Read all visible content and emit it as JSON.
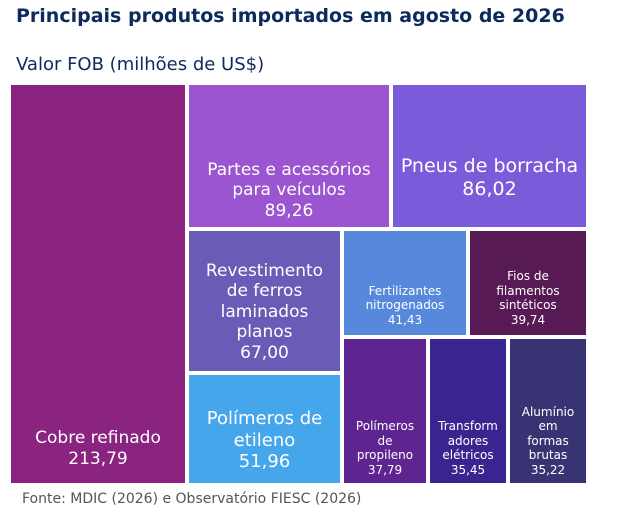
{
  "title": "Principais produtos importados em agosto de 2026",
  "subtitle": "Valor FOB (milhões de US$)",
  "source": "Fonte: MDIC (2026) e Observatório FIESC (2026)",
  "chart_data": {
    "type": "treemap",
    "title": "Principais produtos importados em agosto de 2026",
    "subtitle": "Valor FOB (milhões de US$)",
    "items": [
      {
        "label": "Cobre refinado",
        "value": 213.79,
        "display": "213,79",
        "color": "#8b2381"
      },
      {
        "label": "Partes e acessórios para veículos",
        "value": 89.26,
        "display": "89,26",
        "color": "#9b55d0"
      },
      {
        "label": "Pneus de borracha",
        "value": 86.02,
        "display": "86,02",
        "color": "#7a5bd9"
      },
      {
        "label": "Revestimento de ferros laminados planos",
        "value": 67.0,
        "display": "67,00",
        "color": "#6a5bb6"
      },
      {
        "label": "Polímeros de etileno",
        "value": 51.96,
        "display": "51,96",
        "color": "#46a6ec"
      },
      {
        "label": "Fertilizantes nitrogenados",
        "value": 41.43,
        "display": "41,43",
        "color": "#5688dc"
      },
      {
        "label": "Fios de filamentos sintéticos",
        "value": 39.74,
        "display": "39,74",
        "color": "#581a55"
      },
      {
        "label": "Polímeros de propileno",
        "value": 37.79,
        "display": "37,79",
        "color": "#5e2590"
      },
      {
        "label": "Transformadores elétricos",
        "value": 35.45,
        "display": "35,45",
        "color": "#3a2590"
      },
      {
        "label": "Alumínio em formas brutas",
        "value": 35.22,
        "display": "35,22",
        "color": "#383473"
      }
    ]
  }
}
